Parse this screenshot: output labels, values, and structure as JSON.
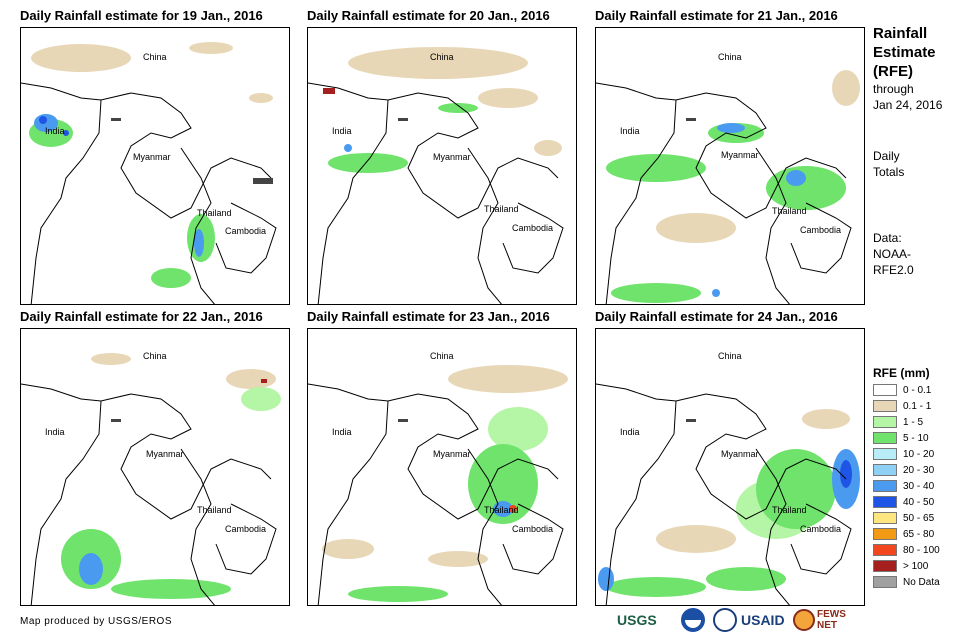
{
  "panels": [
    {
      "title": "Daily Rainfall estimate for 19 Jan., 2016"
    },
    {
      "title": "Daily Rainfall estimate for 20 Jan., 2016"
    },
    {
      "title": "Daily Rainfall estimate for 21 Jan., 2016"
    },
    {
      "title": "Daily Rainfall estimate for 22 Jan., 2016"
    },
    {
      "title": "Daily Rainfall estimate for 23 Jan., 2016"
    },
    {
      "title": "Daily Rainfall estimate for 24 Jan., 2016"
    }
  ],
  "labels": {
    "china": "China",
    "india": "India",
    "myanmar": "Myanmar",
    "thailand": "Thailand",
    "cambodia": "Cambodia"
  },
  "side": {
    "title_line1": "Rainfall",
    "title_line2": "Estimate",
    "title_line3": "(RFE)",
    "through": "through",
    "date": "Jan 24, 2016",
    "daily": "Daily",
    "totals": "Totals",
    "data": "Data:",
    "noaa": "NOAA-",
    "rfe": "RFE2.0"
  },
  "legend": {
    "title": "RFE (mm)",
    "items": [
      {
        "label": "0 - 0.1",
        "color": "#ffffff"
      },
      {
        "label": "0.1 - 1",
        "color": "#e8d7b6"
      },
      {
        "label": "1 - 5",
        "color": "#b4f5a6"
      },
      {
        "label": "5 - 10",
        "color": "#6fe36b"
      },
      {
        "label": "10 - 20",
        "color": "#b8ecf7"
      },
      {
        "label": "20 - 30",
        "color": "#8fd0f5"
      },
      {
        "label": "30 - 40",
        "color": "#4a9bf0"
      },
      {
        "label": "40 - 50",
        "color": "#1f55e6"
      },
      {
        "label": "50 - 65",
        "color": "#fde680"
      },
      {
        "label": "65 - 80",
        "color": "#f29a14"
      },
      {
        "label": "80 - 100",
        "color": "#f2461e"
      },
      {
        "label": "> 100",
        "color": "#a61f1f"
      },
      {
        "label": "No Data",
        "color": "#a0a0a0"
      }
    ]
  },
  "credit": "Map produced by USGS/EROS",
  "logos": {
    "usgs": "USGS",
    "usaid": "USAID",
    "fewsnet": "FEWS NET"
  }
}
